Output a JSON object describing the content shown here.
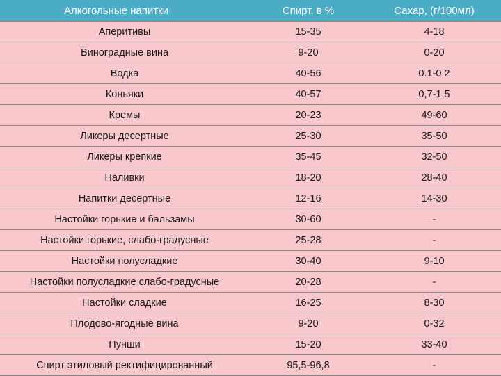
{
  "table": {
    "headers": [
      "Алкогольные напитки",
      "Спирт, в %",
      "Сахар, (г/100мл)"
    ],
    "rows": [
      [
        "Аперитивы",
        "15-35",
        "4-18"
      ],
      [
        "Виноградные вина",
        "9-20",
        "0-20"
      ],
      [
        "Водка",
        "40-56",
        "0.1-0.2"
      ],
      [
        "Коньяки",
        "40-57",
        "0,7-1,5"
      ],
      [
        "Кремы",
        "20-23",
        "49-60"
      ],
      [
        "Ликеры десертные",
        "25-30",
        "35-50"
      ],
      [
        "Ликеры крепкие",
        "35-45",
        "32-50"
      ],
      [
        "Наливки",
        "18-20",
        "28-40"
      ],
      [
        "Напитки десертные",
        "12-16",
        "14-30"
      ],
      [
        "Настойки горькие и бальзамы",
        "30-60",
        "-"
      ],
      [
        "Настойки горькие,  слабо-градусные",
        "25-28",
        "-"
      ],
      [
        "Настойки полусладкие",
        "30-40",
        "9-10"
      ],
      [
        "Настойки полусладкие слабо-градусные",
        "20-28",
        "-"
      ],
      [
        "Настойки сладкие",
        "16-25",
        "8-30"
      ],
      [
        "Плодово-ягодные вина",
        "9-20",
        "0-32"
      ],
      [
        "Пунши",
        "15-20",
        "33-40"
      ],
      [
        "Спирт этиловый ректифицированный",
        "95,5-96,8",
        "-"
      ]
    ]
  }
}
